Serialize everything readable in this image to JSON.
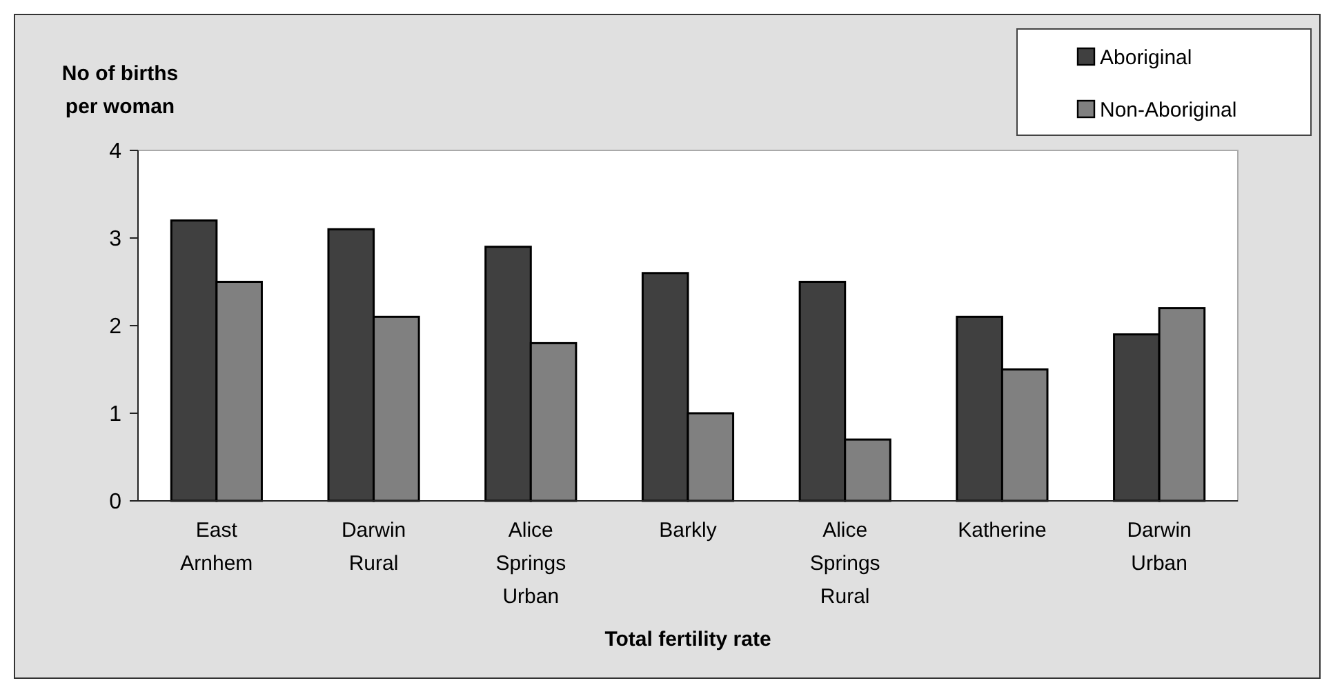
{
  "chart_data": {
    "type": "bar",
    "ylabel": "No of births per woman",
    "xlabel": "Total fertility rate",
    "categories": [
      "East Arnhem",
      "Darwin Rural",
      "Alice Springs Urban",
      "Barkly",
      "Alice Springs Rural",
      "Katherine",
      "Darwin Urban"
    ],
    "series": [
      {
        "name": "Aboriginal",
        "color": "#404040",
        "values": [
          3.2,
          3.1,
          2.9,
          2.6,
          2.5,
          2.1,
          1.9
        ]
      },
      {
        "name": "Non-Aboriginal",
        "color": "#808080",
        "values": [
          2.5,
          2.1,
          1.8,
          1.0,
          0.7,
          1.5,
          2.2
        ]
      }
    ],
    "ylim": [
      0,
      4
    ],
    "yticks": [
      0,
      1,
      2,
      3,
      4
    ],
    "grid": false,
    "legend": "top right"
  }
}
